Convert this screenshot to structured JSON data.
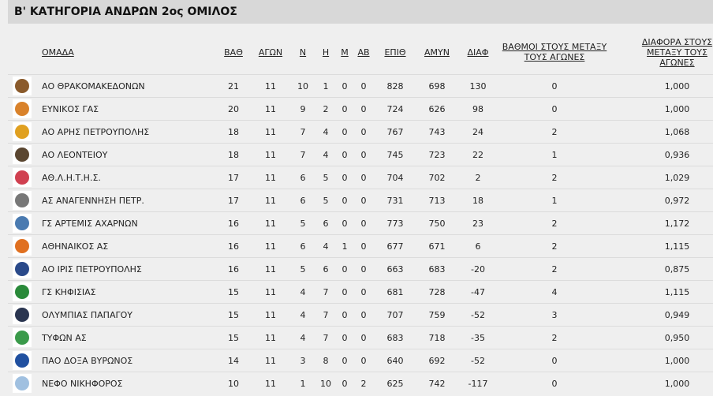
{
  "title": "Β' ΚΑΤΗΓΟΡΙΑ ΑΝΔΡΩΝ 2ος ΟΜΙΛΟΣ",
  "columns": [
    "ΟΜΑΔΑ",
    "ΒΑΘ",
    "ΑΓΩΝ",
    "Ν",
    "Η",
    "Μ",
    "ΑΒ",
    "ΕΠΙΘ",
    "ΑΜΥΝ",
    "ΔΙΑΦ",
    "ΒΑΘΜΟΙ ΣΤΟΥΣ ΜΕΤΑΞΥ ΤΟΥΣ ΑΓΩΝΕΣ",
    "ΔΙΑΦΟΡΑ ΣΤΟΥΣ ΜΕΤΑΞΥ ΤΟΥΣ ΑΓΩΝΕΣ"
  ],
  "rows": [
    {
      "logo": "team-logo",
      "color": "#8a5a2b",
      "team": "ΑΟ ΘΡΑΚΟΜΑΚΕΔΟΝΩΝ",
      "pts": "21",
      "gp": "11",
      "w": "10",
      "l": "1",
      "m": "0",
      "ab": "0",
      "pf": "828",
      "pa": "698",
      "diff": "130",
      "h2h_pts": "0",
      "h2h_diff": "1,000"
    },
    {
      "logo": "team-logo",
      "color": "#d9822b",
      "team": "ΕΥΝΙΚΟΣ ΓΑΣ",
      "pts": "20",
      "gp": "11",
      "w": "9",
      "l": "2",
      "m": "0",
      "ab": "0",
      "pf": "724",
      "pa": "626",
      "diff": "98",
      "h2h_pts": "0",
      "h2h_diff": "1,000"
    },
    {
      "logo": "team-logo",
      "color": "#e0a020",
      "team": "ΑΟ ΑΡΗΣ ΠΕΤΡΟΥΠΟΛΗΣ",
      "pts": "18",
      "gp": "11",
      "w": "7",
      "l": "4",
      "m": "0",
      "ab": "0",
      "pf": "767",
      "pa": "743",
      "diff": "24",
      "h2h_pts": "2",
      "h2h_diff": "1,068"
    },
    {
      "logo": "team-logo",
      "color": "#5a4630",
      "team": "ΑΟ ΛΕΟΝΤΕΙΟΥ",
      "pts": "18",
      "gp": "11",
      "w": "7",
      "l": "4",
      "m": "0",
      "ab": "0",
      "pf": "745",
      "pa": "723",
      "diff": "22",
      "h2h_pts": "1",
      "h2h_diff": "0,936"
    },
    {
      "logo": "team-logo",
      "color": "#d04050",
      "team": "ΑΘ.Λ.Η.Τ.Η.Σ.",
      "pts": "17",
      "gp": "11",
      "w": "6",
      "l": "5",
      "m": "0",
      "ab": "0",
      "pf": "704",
      "pa": "702",
      "diff": "2",
      "h2h_pts": "2",
      "h2h_diff": "1,029"
    },
    {
      "logo": "team-logo",
      "color": "#777777",
      "team": "ΑΣ ΑΝΑΓΕΝΝΗΣΗ ΠΕΤΡ.",
      "pts": "17",
      "gp": "11",
      "w": "6",
      "l": "5",
      "m": "0",
      "ab": "0",
      "pf": "731",
      "pa": "713",
      "diff": "18",
      "h2h_pts": "1",
      "h2h_diff": "0,972"
    },
    {
      "logo": "team-logo",
      "color": "#4a7ab0",
      "team": "ΓΣ ΑΡΤΕΜΙΣ ΑΧΑΡΝΩΝ",
      "pts": "16",
      "gp": "11",
      "w": "5",
      "l": "6",
      "m": "0",
      "ab": "0",
      "pf": "773",
      "pa": "750",
      "diff": "23",
      "h2h_pts": "2",
      "h2h_diff": "1,172"
    },
    {
      "logo": "team-logo",
      "color": "#e07020",
      "team": "ΑΘΗΝΑΙΚΟΣ ΑΣ",
      "pts": "16",
      "gp": "11",
      "w": "6",
      "l": "4",
      "m": "1",
      "ab": "0",
      "pf": "677",
      "pa": "671",
      "diff": "6",
      "h2h_pts": "2",
      "h2h_diff": "1,115"
    },
    {
      "logo": "team-logo",
      "color": "#2a4a8a",
      "team": "ΑΟ ΙΡΙΣ ΠΕΤΡΟΥΠΟΛΗΣ",
      "pts": "16",
      "gp": "11",
      "w": "5",
      "l": "6",
      "m": "0",
      "ab": "0",
      "pf": "663",
      "pa": "683",
      "diff": "-20",
      "h2h_pts": "2",
      "h2h_diff": "0,875"
    },
    {
      "logo": "team-logo",
      "color": "#2a8a3a",
      "team": "ΓΣ ΚΗΦΙΣΙΑΣ",
      "pts": "15",
      "gp": "11",
      "w": "4",
      "l": "7",
      "m": "0",
      "ab": "0",
      "pf": "681",
      "pa": "728",
      "diff": "-47",
      "h2h_pts": "4",
      "h2h_diff": "1,115"
    },
    {
      "logo": "team-logo",
      "color": "#2a3550",
      "team": "ΟΛΥΜΠΙΑΣ ΠΑΠΑΓΟΥ",
      "pts": "15",
      "gp": "11",
      "w": "4",
      "l": "7",
      "m": "0",
      "ab": "0",
      "pf": "707",
      "pa": "759",
      "diff": "-52",
      "h2h_pts": "3",
      "h2h_diff": "0,949"
    },
    {
      "logo": "team-logo",
      "color": "#3a9a4a",
      "team": "ΤΥΦΩΝ ΑΣ",
      "pts": "15",
      "gp": "11",
      "w": "4",
      "l": "7",
      "m": "0",
      "ab": "0",
      "pf": "683",
      "pa": "718",
      "diff": "-35",
      "h2h_pts": "2",
      "h2h_diff": "0,950"
    },
    {
      "logo": "team-logo",
      "color": "#2050a0",
      "team": "ΠΑΟ ΔΟΞΑ ΒΥΡΩΝΟΣ",
      "pts": "14",
      "gp": "11",
      "w": "3",
      "l": "8",
      "m": "0",
      "ab": "0",
      "pf": "640",
      "pa": "692",
      "diff": "-52",
      "h2h_pts": "0",
      "h2h_diff": "1,000"
    },
    {
      "logo": "team-logo",
      "color": "#a0c0e0",
      "team": "ΝΕΦΟ ΝΙΚΗΦΟΡΟΣ",
      "pts": "10",
      "gp": "11",
      "w": "1",
      "l": "10",
      "m": "0",
      "ab": "2",
      "pf": "625",
      "pa": "742",
      "diff": "-117",
      "h2h_pts": "0",
      "h2h_diff": "1,000"
    }
  ]
}
